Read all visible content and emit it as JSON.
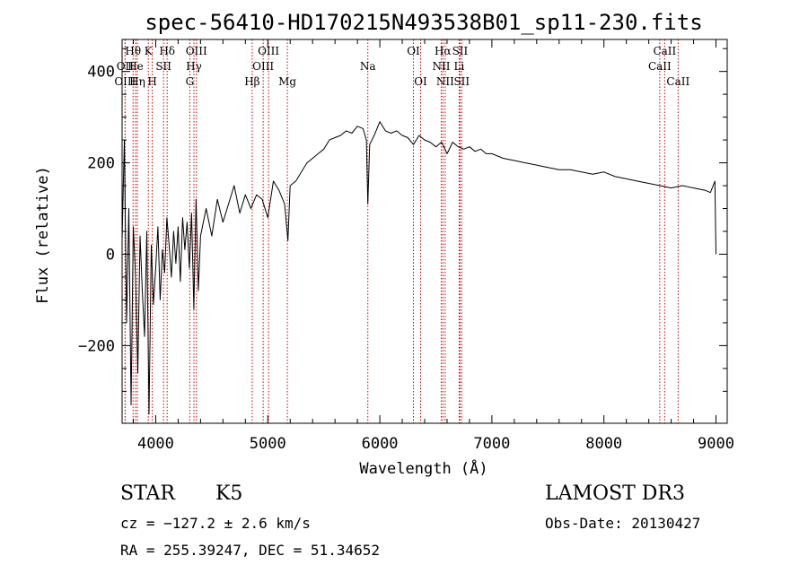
{
  "chart_data": {
    "type": "line",
    "title": "spec-56410-HD170215N493538B01_sp11-230.fits",
    "xlabel": "Wavelength (Å)",
    "ylabel": "Flux (relative)",
    "xlim": [
      3700,
      9100
    ],
    "ylim": [
      -370,
      470
    ],
    "xticks": [
      4000,
      5000,
      6000,
      7000,
      8000,
      9000
    ],
    "yticks": [
      -200,
      0,
      200,
      400
    ],
    "x_tick_labels": [
      "4000",
      "5000",
      "6000",
      "7000",
      "8000",
      "9000"
    ],
    "y_tick_labels": [
      "−200",
      "0",
      "200",
      "400"
    ],
    "series": [
      {
        "name": "spectrum",
        "x": [
          3700,
          3720,
          3740,
          3760,
          3780,
          3800,
          3820,
          3840,
          3860,
          3880,
          3900,
          3920,
          3940,
          3960,
          3980,
          4000,
          4020,
          4040,
          4060,
          4080,
          4100,
          4120,
          4140,
          4160,
          4180,
          4200,
          4220,
          4240,
          4260,
          4280,
          4300,
          4320,
          4340,
          4360,
          4380,
          4400,
          4450,
          4500,
          4550,
          4600,
          4650,
          4700,
          4750,
          4800,
          4850,
          4900,
          4950,
          5000,
          5050,
          5100,
          5150,
          5180,
          5200,
          5250,
          5300,
          5350,
          5400,
          5450,
          5500,
          5550,
          5600,
          5650,
          5700,
          5750,
          5800,
          5850,
          5880,
          5893,
          5910,
          5950,
          6000,
          6050,
          6100,
          6150,
          6200,
          6250,
          6300,
          6350,
          6400,
          6450,
          6500,
          6550,
          6563,
          6600,
          6650,
          6700,
          6750,
          6800,
          6850,
          6900,
          6950,
          7000,
          7100,
          7200,
          7300,
          7400,
          7500,
          7600,
          7700,
          7800,
          7900,
          8000,
          8100,
          8200,
          8300,
          8400,
          8500,
          8600,
          8700,
          8800,
          8900,
          8950,
          8990,
          9000
        ],
        "y": [
          30,
          250,
          -150,
          100,
          -330,
          60,
          -50,
          -260,
          40,
          -80,
          -180,
          50,
          -350,
          20,
          -110,
          -30,
          60,
          -100,
          10,
          -40,
          80,
          20,
          -50,
          50,
          -20,
          60,
          -60,
          80,
          10,
          70,
          -30,
          90,
          -120,
          120,
          -80,
          40,
          100,
          40,
          120,
          70,
          110,
          150,
          90,
          130,
          100,
          130,
          120,
          80,
          160,
          140,
          110,
          30,
          150,
          160,
          180,
          200,
          210,
          220,
          230,
          250,
          255,
          260,
          270,
          265,
          280,
          275,
          250,
          110,
          240,
          260,
          290,
          270,
          265,
          270,
          260,
          255,
          240,
          260,
          250,
          245,
          235,
          245,
          240,
          220,
          245,
          235,
          230,
          235,
          225,
          230,
          220,
          220,
          210,
          205,
          200,
          195,
          190,
          185,
          185,
          180,
          175,
          180,
          170,
          165,
          160,
          155,
          150,
          145,
          150,
          145,
          140,
          135,
          160,
          0
        ]
      }
    ],
    "lines": [
      {
        "name": "Hθ",
        "wave": 3798,
        "row": 0
      },
      {
        "name": "OII",
        "wave": 3727,
        "row": 1
      },
      {
        "name": "He",
        "wave": 3820,
        "row": 1
      },
      {
        "name": "OIII",
        "wave": 3727,
        "row": 2
      },
      {
        "name": "Hη",
        "wave": 3836,
        "row": 2
      },
      {
        "name": "K",
        "wave": 3934,
        "row": 0
      },
      {
        "name": "H",
        "wave": 3969,
        "row": 2
      },
      {
        "name": "SII",
        "wave": 4070,
        "row": 1
      },
      {
        "name": "Hδ",
        "wave": 4102,
        "row": 0
      },
      {
        "name": "G",
        "wave": 4304,
        "row": 2
      },
      {
        "name": "Hγ",
        "wave": 4341,
        "row": 1
      },
      {
        "name": "OIII",
        "wave": 4363,
        "row": 0
      },
      {
        "name": "Hβ",
        "wave": 4861,
        "row": 2
      },
      {
        "name": "OIII",
        "wave": 4959,
        "row": 1
      },
      {
        "name": "OIII",
        "wave": 5007,
        "row": 0
      },
      {
        "name": "Mg",
        "wave": 5175,
        "row": 2
      },
      {
        "name": "Na",
        "wave": 5893,
        "row": 1
      },
      {
        "name": "OI",
        "wave": 6300,
        "row": 0
      },
      {
        "name": "OI",
        "wave": 6364,
        "row": 2
      },
      {
        "name": "NII",
        "wave": 6548,
        "row": 1
      },
      {
        "name": "Hα",
        "wave": 6563,
        "row": 0
      },
      {
        "name": "NII",
        "wave": 6583,
        "row": 2
      },
      {
        "name": "Li",
        "wave": 6708,
        "row": 1
      },
      {
        "name": "SII",
        "wave": 6716,
        "row": 0
      },
      {
        "name": "SII",
        "wave": 6731,
        "row": 2
      },
      {
        "name": "CaII",
        "wave": 8498,
        "row": 1
      },
      {
        "name": "CaII",
        "wave": 8542,
        "row": 0
      },
      {
        "name": "CaII",
        "wave": 8662,
        "row": 2
      }
    ]
  },
  "info": {
    "object_class": "STAR",
    "subclass": "K5",
    "survey": "LAMOST DR3",
    "redshift": "cz = −127.2 ± 2.6 km/s",
    "obs_date": "Obs-Date: 20130427",
    "coords": "RA = 255.39247, DEC =  51.34652"
  },
  "colors": {
    "spectrum": "#000000",
    "line_marker": "#cc0000",
    "axes": "#000000"
  }
}
